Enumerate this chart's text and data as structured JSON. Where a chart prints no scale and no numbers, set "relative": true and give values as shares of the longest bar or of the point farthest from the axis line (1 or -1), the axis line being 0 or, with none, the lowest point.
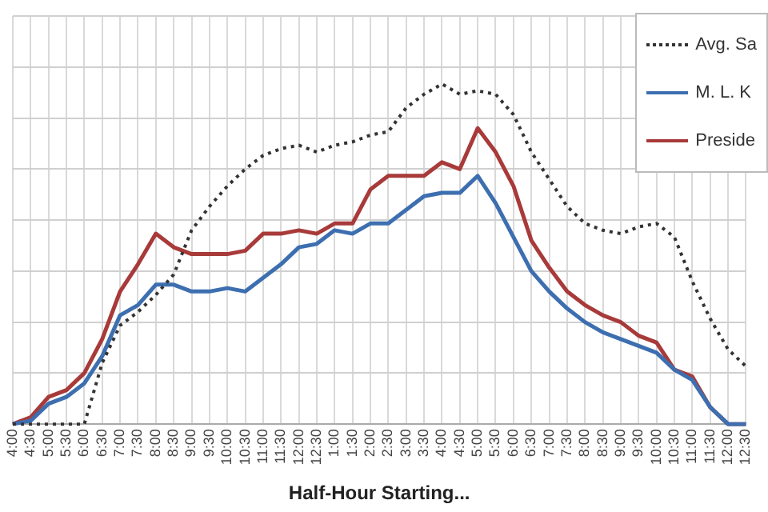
{
  "chart_data": {
    "type": "line",
    "xlabel": "Half-Hour Starting...",
    "relative": true,
    "grid": true,
    "legend": "top right",
    "marker": "none",
    "categories": [
      "4:00",
      "4:30",
      "5:00",
      "5:30",
      "6:00",
      "6:30",
      "7:00",
      "7:30",
      "8:00",
      "8:30",
      "9:00",
      "9:30",
      "10:00",
      "10:30",
      "11:00",
      "11:30",
      "12:00",
      "12:30",
      "1:00",
      "1:30",
      "2:00",
      "2:30",
      "3:00",
      "3:30",
      "4:00",
      "4:30",
      "5:00",
      "5:30",
      "6:00",
      "6:30",
      "7:00",
      "7:30",
      "8:00",
      "8:30",
      "9:00",
      "9:30",
      "10:00",
      "10:30",
      "11:00",
      "11:30",
      "12:00",
      "12:30"
    ],
    "series": [
      {
        "name": "Avg. Sa",
        "color": "#333333",
        "line_style": "dotted",
        "values": [
          0,
          0,
          0,
          0,
          0,
          0.18,
          0.29,
          0.33,
          0.38,
          0.44,
          0.57,
          0.64,
          0.7,
          0.75,
          0.79,
          0.81,
          0.82,
          0.8,
          0.82,
          0.83,
          0.85,
          0.86,
          0.93,
          0.97,
          1,
          0.97,
          0.98,
          0.97,
          0.91,
          0.8,
          0.72,
          0.64,
          0.59,
          0.57,
          0.56,
          0.58,
          0.59,
          0.55,
          0.42,
          0.31,
          0.22,
          0.17
        ]
      },
      {
        "name": "M. L. K",
        "color": "#3d6fb0",
        "line_style": "solid",
        "values": [
          0,
          0.01,
          0.06,
          0.08,
          0.12,
          0.2,
          0.32,
          0.35,
          0.41,
          0.41,
          0.39,
          0.39,
          0.4,
          0.39,
          0.43,
          0.47,
          0.52,
          0.53,
          0.57,
          0.56,
          0.59,
          0.59,
          0.63,
          0.67,
          0.68,
          0.68,
          0.73,
          0.65,
          0.55,
          0.45,
          0.39,
          0.34,
          0.3,
          0.27,
          0.25,
          0.23,
          0.21,
          0.16,
          0.13,
          0.05,
          0,
          0
        ]
      },
      {
        "name": "Preside",
        "color": "#a83a3a",
        "line_style": "solid",
        "values": [
          0,
          0.02,
          0.08,
          0.1,
          0.15,
          0.25,
          0.39,
          0.47,
          0.56,
          0.52,
          0.5,
          0.5,
          0.5,
          0.51,
          0.56,
          0.56,
          0.57,
          0.56,
          0.59,
          0.59,
          0.69,
          0.73,
          0.73,
          0.73,
          0.77,
          0.75,
          0.87,
          0.8,
          0.7,
          0.54,
          0.46,
          0.39,
          0.35,
          0.32,
          0.3,
          0.26,
          0.24,
          0.16,
          0.14,
          0.05,
          0,
          0
        ]
      }
    ]
  }
}
